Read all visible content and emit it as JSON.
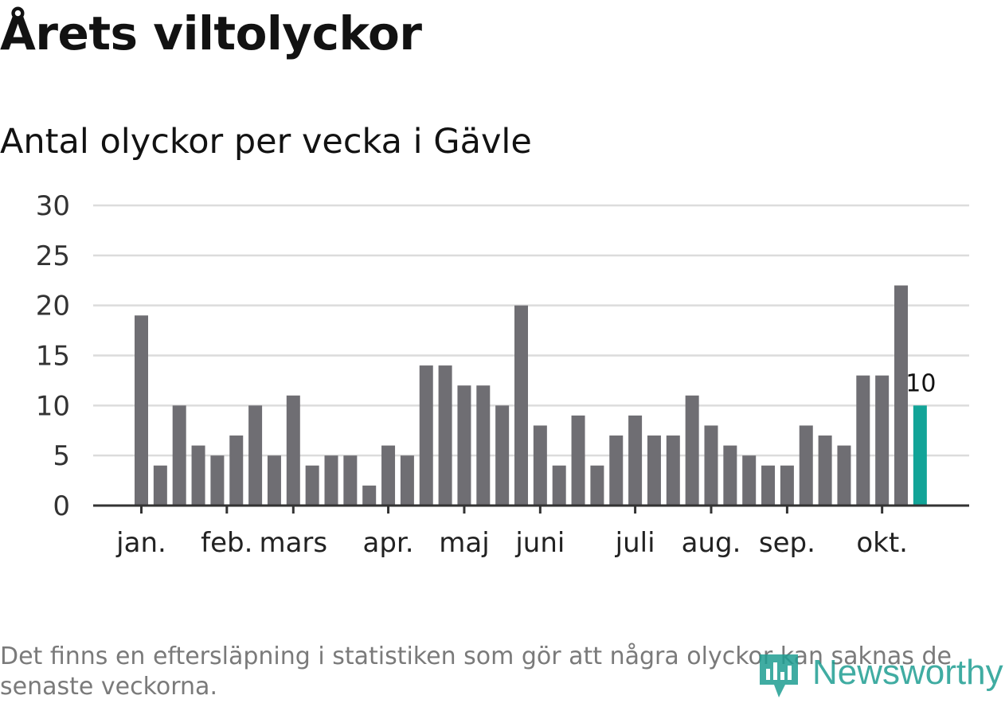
{
  "header": {
    "title": "Årets viltolyckor",
    "subtitle": "Antal olyckor per vecka i Gävle"
  },
  "chart_data": {
    "type": "bar",
    "title": "Årets viltolyckor",
    "subtitle": "Antal olyckor per vecka i Gävle",
    "xlabel": "",
    "ylabel": "",
    "ylim": [
      0,
      30
    ],
    "yticks": [
      "0",
      "5",
      "10",
      "15",
      "20",
      "25",
      "30"
    ],
    "grid": true,
    "month_labels": [
      "jan.",
      "feb.",
      "mars",
      "apr.",
      "maj",
      "juni",
      "juli",
      "aug.",
      "sep.",
      "okt."
    ],
    "month_start_week": [
      1,
      5.5,
      9,
      14,
      18,
      22,
      27,
      31,
      35,
      40
    ],
    "weeks": [
      1,
      2,
      3,
      4,
      5,
      6,
      7,
      8,
      9,
      10,
      11,
      12,
      13,
      14,
      15,
      16,
      17,
      18,
      19,
      20,
      21,
      22,
      23,
      24,
      25,
      26,
      27,
      28,
      29,
      30,
      31,
      32,
      33,
      34,
      35,
      36,
      37,
      38,
      39,
      40,
      41,
      42
    ],
    "values": [
      19,
      4,
      10,
      6,
      5,
      7,
      10,
      5,
      11,
      4,
      5,
      5,
      2,
      6,
      5,
      14,
      14,
      12,
      12,
      10,
      20,
      8,
      4,
      9,
      4,
      7,
      9,
      7,
      7,
      11,
      8,
      6,
      5,
      4,
      4,
      8,
      7,
      6,
      13,
      13,
      22,
      10
    ],
    "highlight": {
      "index": 41,
      "label": "10"
    },
    "colors": {
      "bar": "#6f6e73",
      "highlight": "#12a498",
      "grid": "#dcdcdc",
      "axis": "#333333"
    }
  },
  "footnote": "Det finns en eftersläpning i statistiken som gör att några olyckor kan saknas de senaste veckorna.",
  "brand": {
    "name": "Newsworthy",
    "icon": "newsworthy-bar-logo-icon",
    "color": "#1f9e92"
  }
}
